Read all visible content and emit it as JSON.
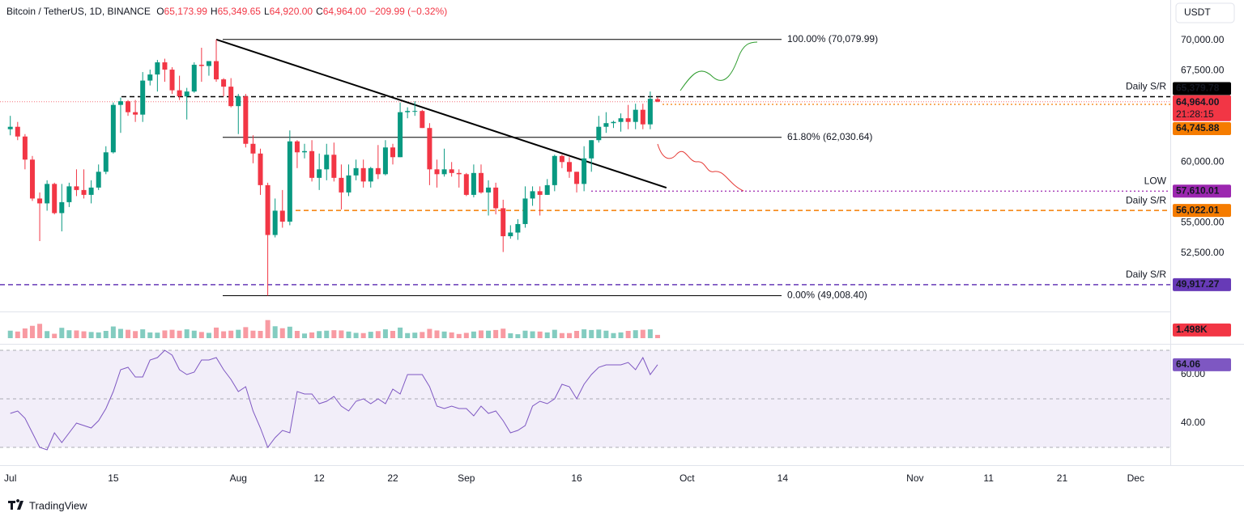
{
  "header": {
    "symbol": "Bitcoin / TetherUS, 1D, BINANCE",
    "ohlc": [
      {
        "key": "O",
        "value": "65,173.99"
      },
      {
        "key": "H",
        "value": "65,349.65"
      },
      {
        "key": "L",
        "value": "64,920.00"
      },
      {
        "key": "C",
        "value": "64,964.00"
      }
    ],
    "change": "−209.99 (−0.32%)",
    "currency": "USDT",
    "brand": "TradingView"
  },
  "chart_data": {
    "type": "candlestick",
    "up_color": "#089981",
    "down_color": "#f23645",
    "grid": false,
    "x": [
      0,
      1,
      2,
      3,
      4,
      5,
      6,
      7,
      8,
      9,
      10,
      11,
      12,
      13,
      14,
      15,
      16,
      17,
      18,
      19,
      20,
      21,
      22,
      23,
      24,
      25,
      26,
      27,
      28,
      29,
      30,
      31,
      32,
      33,
      34,
      35,
      36,
      37,
      38,
      39,
      40,
      41,
      42,
      43,
      44,
      45,
      46,
      47,
      48,
      49,
      50,
      51,
      52,
      53,
      54,
      55,
      56,
      57,
      58,
      59,
      60,
      61,
      62,
      63,
      64,
      65,
      66,
      67,
      68,
      69,
      70,
      71,
      72,
      73,
      74,
      75,
      76,
      77,
      78,
      79,
      80,
      81,
      82,
      83,
      84,
      85,
      86,
      87,
      88
    ],
    "open": [
      62700,
      62900,
      62100,
      60200,
      57000,
      56600,
      58200,
      55800,
      56700,
      58000,
      57700,
      57300,
      57900,
      59200,
      60800,
      64700,
      65000,
      64100,
      63900,
      66700,
      67200,
      68200,
      67600,
      65900,
      65400,
      65800,
      68000,
      67900,
      68300,
      66800,
      66200,
      64600,
      65400,
      61500,
      60700,
      58100,
      54000,
      56000,
      55100,
      61700,
      60800,
      60900,
      58700,
      59400,
      60600,
      58700,
      57500,
      58900,
      59500,
      58400,
      59500,
      59000,
      61200,
      60400,
      64100,
      64200,
      64200,
      62800,
      59400,
      59000,
      59400,
      59100,
      59000,
      57300,
      59100,
      57500,
      57900,
      56200,
      53900,
      54200,
      54900,
      57000,
      57600,
      57300,
      58100,
      60500,
      60000,
      59200,
      58200,
      60300,
      61800,
      62900,
      63200,
      63300,
      63600,
      63300,
      64300,
      63100,
      65173.99
    ],
    "high": [
      63800,
      63300,
      62300,
      60500,
      57500,
      58500,
      58300,
      58200,
      58300,
      59400,
      59400,
      58500,
      59800,
      61300,
      64900,
      65300,
      65100,
      65100,
      67400,
      67600,
      68400,
      68500,
      67800,
      67100,
      66100,
      68200,
      69400,
      68300,
      70080,
      66900,
      66900,
      65600,
      65600,
      62200,
      61100,
      58300,
      57000,
      57700,
      62600,
      61800,
      61500,
      61800,
      60700,
      61500,
      61600,
      59800,
      59800,
      60200,
      60200,
      59600,
      61400,
      61800,
      61500,
      64900,
      64500,
      65000,
      64300,
      63200,
      60200,
      61100,
      60000,
      59400,
      59100,
      59800,
      59800,
      58500,
      58300,
      56900,
      54800,
      55300,
      58000,
      58000,
      58000,
      58600,
      60600,
      60600,
      60400,
      59200,
      61300,
      61800,
      63800,
      64100,
      63400,
      64000,
      64700,
      64800,
      64800,
      65800,
      65349.65
    ],
    "low": [
      62200,
      61800,
      59400,
      56800,
      53500,
      56000,
      55700,
      54300,
      56300,
      57200,
      57000,
      56600,
      57700,
      59000,
      60700,
      62400,
      63800,
      63300,
      63300,
      66300,
      65800,
      66600,
      65600,
      65100,
      63500,
      65700,
      66600,
      67100,
      66600,
      65400,
      64500,
      62300,
      61200,
      59900,
      57300,
      49008.4,
      53800,
      54600,
      54800,
      59500,
      60300,
      58400,
      57700,
      58500,
      58400,
      56100,
      57200,
      58500,
      57900,
      57900,
      58600,
      58900,
      59800,
      60400,
      63600,
      63800,
      62800,
      58100,
      57900,
      58800,
      58800,
      57900,
      57200,
      57100,
      57400,
      55600,
      55700,
      52600,
      53700,
      53600,
      54600,
      56400,
      55600,
      57300,
      57600,
      59500,
      58700,
      57500,
      57600,
      59200,
      61600,
      62400,
      62800,
      62500,
      62700,
      62700,
      62700,
      62700,
      64920
    ],
    "close": [
      62900,
      62100,
      60200,
      57000,
      56600,
      58200,
      55800,
      56700,
      58000,
      57700,
      57300,
      57900,
      59200,
      60800,
      64700,
      65000,
      64100,
      63900,
      66700,
      67200,
      68200,
      67600,
      65900,
      65400,
      65800,
      68000,
      67900,
      68300,
      66800,
      66200,
      64600,
      65400,
      61500,
      60700,
      58100,
      54000,
      56000,
      55100,
      61700,
      60800,
      60900,
      58700,
      59400,
      60600,
      58700,
      57500,
      58900,
      59500,
      58400,
      59500,
      59000,
      61200,
      60400,
      64100,
      64200,
      64200,
      62800,
      59400,
      59000,
      59400,
      59100,
      59000,
      57300,
      59100,
      57500,
      57900,
      56200,
      53900,
      54200,
      54900,
      57000,
      57600,
      57300,
      58100,
      60500,
      60000,
      59200,
      58200,
      60300,
      61800,
      62900,
      63200,
      63300,
      63600,
      63300,
      64300,
      63100,
      65200,
      64964
    ],
    "volume": [
      3400,
      3000,
      4400,
      5600,
      6500,
      3200,
      2000,
      4700,
      3600,
      3500,
      3100,
      2800,
      2600,
      3300,
      5300,
      4200,
      3800,
      3200,
      4000,
      2600,
      2500,
      3500,
      3800,
      3400,
      4000,
      3400,
      2800,
      2400,
      4800,
      3100,
      3400,
      3800,
      5000,
      3400,
      3300,
      8200,
      5400,
      4500,
      5200,
      3300,
      2100,
      2600,
      3200,
      3400,
      3600,
      3500,
      3000,
      2400,
      2300,
      2900,
      3200,
      4000,
      3300,
      4800,
      2300,
      2500,
      2800,
      4200,
      3500,
      3000,
      2600,
      1900,
      2400,
      3000,
      3500,
      3400,
      3700,
      4300,
      2200,
      1800,
      3400,
      3100,
      3000,
      2600,
      3800,
      2300,
      2300,
      3300,
      4000,
      3700,
      3900,
      3400,
      2300,
      2600,
      3300,
      3600,
      3800,
      4000,
      1498
    ],
    "volume_last_label": "1.498K",
    "vlim": [
      0,
      11000
    ],
    "rsi": [
      44,
      45,
      42,
      36,
      30,
      29,
      36,
      32,
      36,
      40,
      39,
      38,
      41,
      46,
      53,
      62,
      63,
      59,
      59,
      66,
      67,
      70,
      68,
      62,
      60,
      61,
      66,
      66,
      67,
      62,
      58,
      53,
      55,
      45,
      38,
      30,
      34,
      37,
      36,
      53,
      52,
      52,
      48,
      49,
      51,
      47,
      45,
      49,
      50,
      48,
      50,
      48,
      54,
      52,
      60,
      60,
      60,
      55,
      47,
      46,
      47,
      46,
      46,
      43,
      47,
      44,
      45,
      41,
      36,
      37,
      39,
      47,
      49,
      48,
      50,
      56,
      55,
      50,
      56,
      60,
      63,
      64,
      64,
      64,
      65,
      62,
      67,
      60,
      64.06
    ],
    "rsi_color": "#7e57c2",
    "rlim": [
      22.67,
      72.67
    ],
    "rsi_levels": [
      70,
      50,
      30
    ],
    "rticks": [
      {
        "value": 60,
        "label": "60.00"
      },
      {
        "value": 40,
        "label": "40.00"
      }
    ],
    "ylim": [
      47711,
      73327
    ],
    "yticks": [
      {
        "value": 70000,
        "label": "70,000.00"
      },
      {
        "value": 67500,
        "label": "67,500.00"
      },
      {
        "value": 60000,
        "label": "60,000.00"
      },
      {
        "value": 55000,
        "label": "55,000.00"
      },
      {
        "value": 52500,
        "label": "52,500.00"
      }
    ],
    "xlim": [
      -1.4,
      157.7
    ],
    "xticks": [
      {
        "value": 0,
        "label": "Jul"
      },
      {
        "value": 14,
        "label": "15"
      },
      {
        "value": 31,
        "label": "Aug"
      },
      {
        "value": 42,
        "label": "12"
      },
      {
        "value": 52,
        "label": "22"
      },
      {
        "value": 62,
        "label": "Sep"
      },
      {
        "value": 77,
        "label": "16"
      },
      {
        "value": 92,
        "label": "Oct"
      },
      {
        "value": 105,
        "label": "14"
      },
      {
        "value": 123,
        "label": "Nov"
      },
      {
        "value": 133,
        "label": "11"
      },
      {
        "value": 143,
        "label": "21"
      },
      {
        "value": 153,
        "label": "Dec"
      }
    ],
    "fib": [
      {
        "value": 70079.99,
        "label": "100.00% (70,079.99)"
      },
      {
        "value": 62030.64,
        "label": "61.80% (62,030.64)"
      },
      {
        "value": 49008.4,
        "label": "0.00% (49,008.40)"
      }
    ],
    "trendline": {
      "x": [
        28,
        89.2
      ],
      "y": [
        70079.99,
        57890
      ]
    },
    "levels": [
      {
        "value": 65379.78,
        "label": "65,379.78",
        "name": "Daily S/R",
        "name_color": "#f23645",
        "color": "#000000",
        "style": "dashed"
      },
      {
        "value": 57610.01,
        "label": "57,610.01",
        "name": "LOW",
        "name_color": "#9c27b0",
        "color": "#9c27b0",
        "style": "dotted"
      },
      {
        "value": 56022.01,
        "label": "56,022.01",
        "name": "Daily S/R",
        "name_color": "#f57c00",
        "color": "#f57c00",
        "style": "dashed"
      },
      {
        "value": 49917.27,
        "label": "49,917.27",
        "name": "Daily S/R",
        "name_color": "#673ab7",
        "color": "#673ab7",
        "style": "dashed"
      },
      {
        "value": 64745.88,
        "label": "64,745.88",
        "color": "#f57c00",
        "style": "dotted"
      }
    ],
    "last": {
      "value": 64964,
      "label": "64,964.00",
      "countdown": "21:28:15",
      "color": "#f23645"
    }
  }
}
